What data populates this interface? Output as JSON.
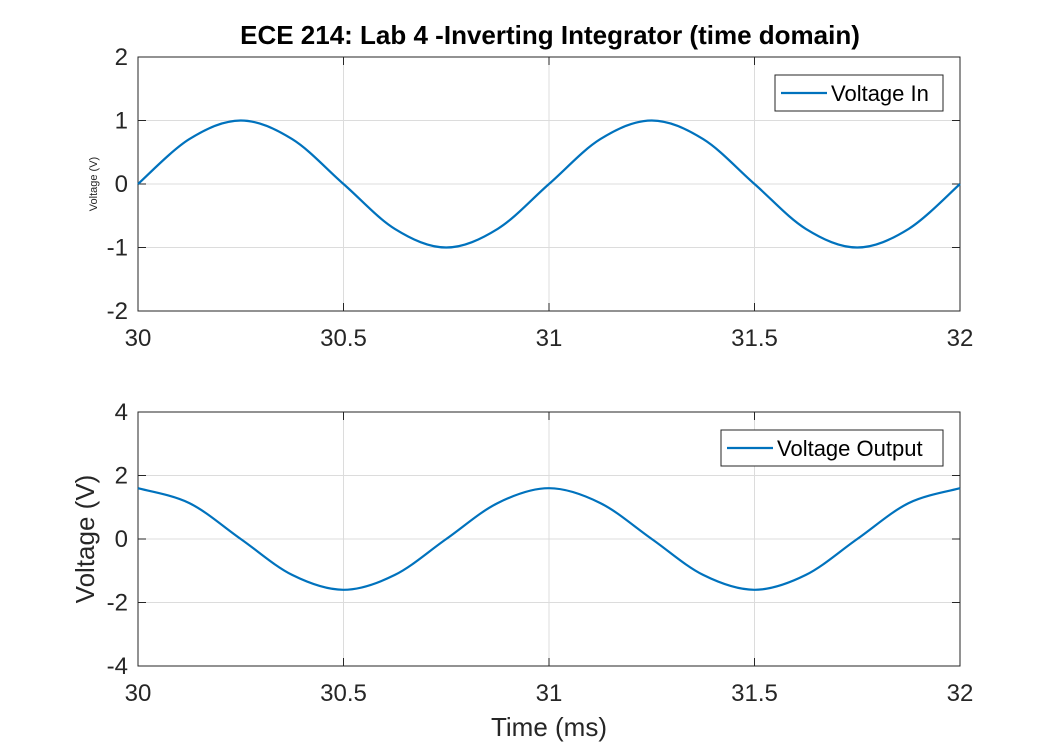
{
  "colors": {
    "series": "#0072bd",
    "axes": "#262626",
    "grid": "#dcdcdc"
  },
  "chart_data": [
    {
      "type": "line",
      "title": "ECE 214: Lab 4 -Inverting Integrator (time domain)",
      "xlabel": "",
      "ylabel": "Voltage (V)",
      "xlim": [
        30,
        32
      ],
      "ylim": [
        -2,
        2
      ],
      "xticks": [
        30,
        30.5,
        31,
        31.5,
        32
      ],
      "xtick_labels": [
        "30",
        "30.5",
        "31",
        "31.5",
        "32"
      ],
      "yticks": [
        -2,
        -1,
        0,
        1,
        2
      ],
      "ytick_labels": [
        "-2",
        "-1",
        "0",
        "1",
        "2"
      ],
      "grid": true,
      "legend_position": "top-right",
      "series": [
        {
          "name": "Voltage In",
          "x": [
            30,
            30.125,
            30.25,
            30.375,
            30.5,
            30.625,
            30.75,
            30.875,
            31,
            31.125,
            31.25,
            31.375,
            31.5,
            31.625,
            31.75,
            31.875,
            32
          ],
          "y": [
            0,
            0.707,
            1,
            0.707,
            0,
            -0.707,
            -1,
            -0.707,
            0,
            0.707,
            1,
            0.707,
            0,
            -0.707,
            -1,
            -0.707,
            0
          ]
        }
      ]
    },
    {
      "type": "line",
      "title": "",
      "xlabel": "Time (ms)",
      "ylabel": "Voltage (V)",
      "xlim": [
        30,
        32
      ],
      "ylim": [
        -4,
        4
      ],
      "xticks": [
        30,
        30.5,
        31,
        31.5,
        32
      ],
      "xtick_labels": [
        "30",
        "30.5",
        "31",
        "31.5",
        "32"
      ],
      "yticks": [
        -4,
        -2,
        0,
        2,
        4
      ],
      "ytick_labels": [
        "-4",
        "-2",
        "0",
        "2",
        "4"
      ],
      "grid": true,
      "legend_position": "top-right",
      "series": [
        {
          "name": "Voltage Output",
          "x": [
            30,
            30.125,
            30.25,
            30.375,
            30.5,
            30.625,
            30.75,
            30.875,
            31,
            31.125,
            31.25,
            31.375,
            31.5,
            31.625,
            31.75,
            31.875,
            32
          ],
          "y": [
            1.6,
            1.131,
            0,
            -1.131,
            -1.6,
            -1.131,
            0,
            1.131,
            1.6,
            1.131,
            0,
            -1.131,
            -1.6,
            -1.131,
            0,
            1.131,
            1.6
          ]
        }
      ]
    }
  ]
}
